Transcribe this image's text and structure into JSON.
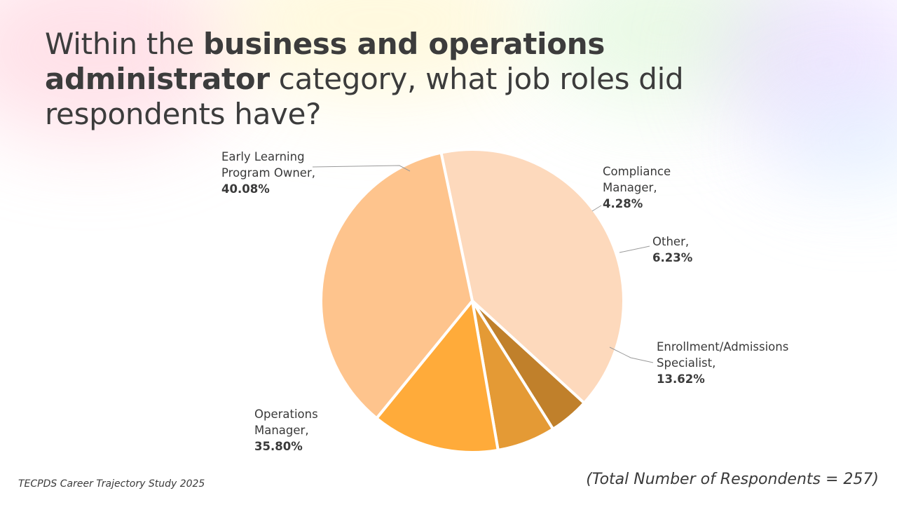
{
  "slide": {
    "title_part1": "Within the ",
    "title_bold1": "business and operations administrator",
    "title_part2": " category, what job roles did respondents have?",
    "source": "TECPDS Career Trajectory Study 2025",
    "note": "(Total Number of Respondents = 257)"
  },
  "chart_data": {
    "type": "pie",
    "total_respondents": 257,
    "slices": [
      {
        "label": "Early Learning Program Owner,",
        "value": 40.08,
        "display": "40.08%",
        "color": "#fdd9bc"
      },
      {
        "label": "Compliance Manager,",
        "value": 4.28,
        "display": "4.28%",
        "color": "#c0802b"
      },
      {
        "label": "Other,",
        "value": 6.23,
        "display": "6.23%",
        "color": "#e49a35"
      },
      {
        "label": "Enrollment/Admissions Specialist,",
        "value": 13.62,
        "display": "13.62%",
        "color": "#ffab3a"
      },
      {
        "label": "Operations Manager,",
        "value": 35.8,
        "display": "35.80%",
        "color": "#fec48d"
      }
    ]
  }
}
